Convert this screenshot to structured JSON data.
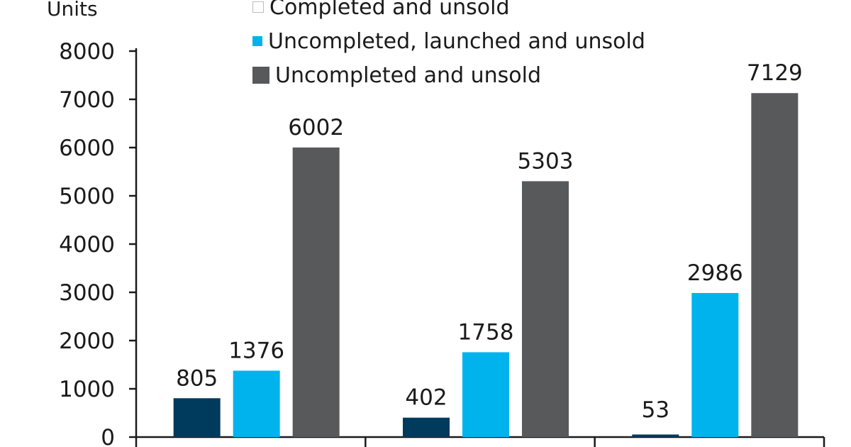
{
  "chart_data": {
    "type": "bar",
    "ylabel": "Units",
    "ylim": [
      0,
      8000
    ],
    "yticks": [
      "0",
      "1000",
      "2000",
      "3000",
      "4000",
      "5000",
      "6000",
      "7000",
      "8000"
    ],
    "categories": [
      "",
      "",
      ""
    ],
    "series": [
      {
        "name": "Completed and unsold",
        "color": "#003a5c",
        "values": [
          805,
          402,
          53
        ],
        "labels": [
          "805",
          "402",
          "53"
        ]
      },
      {
        "name": "Uncompleted, launched and unsold",
        "color": "#00b3ec",
        "values": [
          1376,
          1758,
          2986
        ],
        "labels": [
          "1376",
          "1758",
          "2986"
        ]
      },
      {
        "name": "Uncompleted and unsold",
        "color": "#58595b",
        "values": [
          6002,
          5303,
          7129
        ],
        "labels": [
          "6002",
          "5303",
          "7129"
        ]
      }
    ],
    "legend_position": "top-center",
    "grid": false
  }
}
